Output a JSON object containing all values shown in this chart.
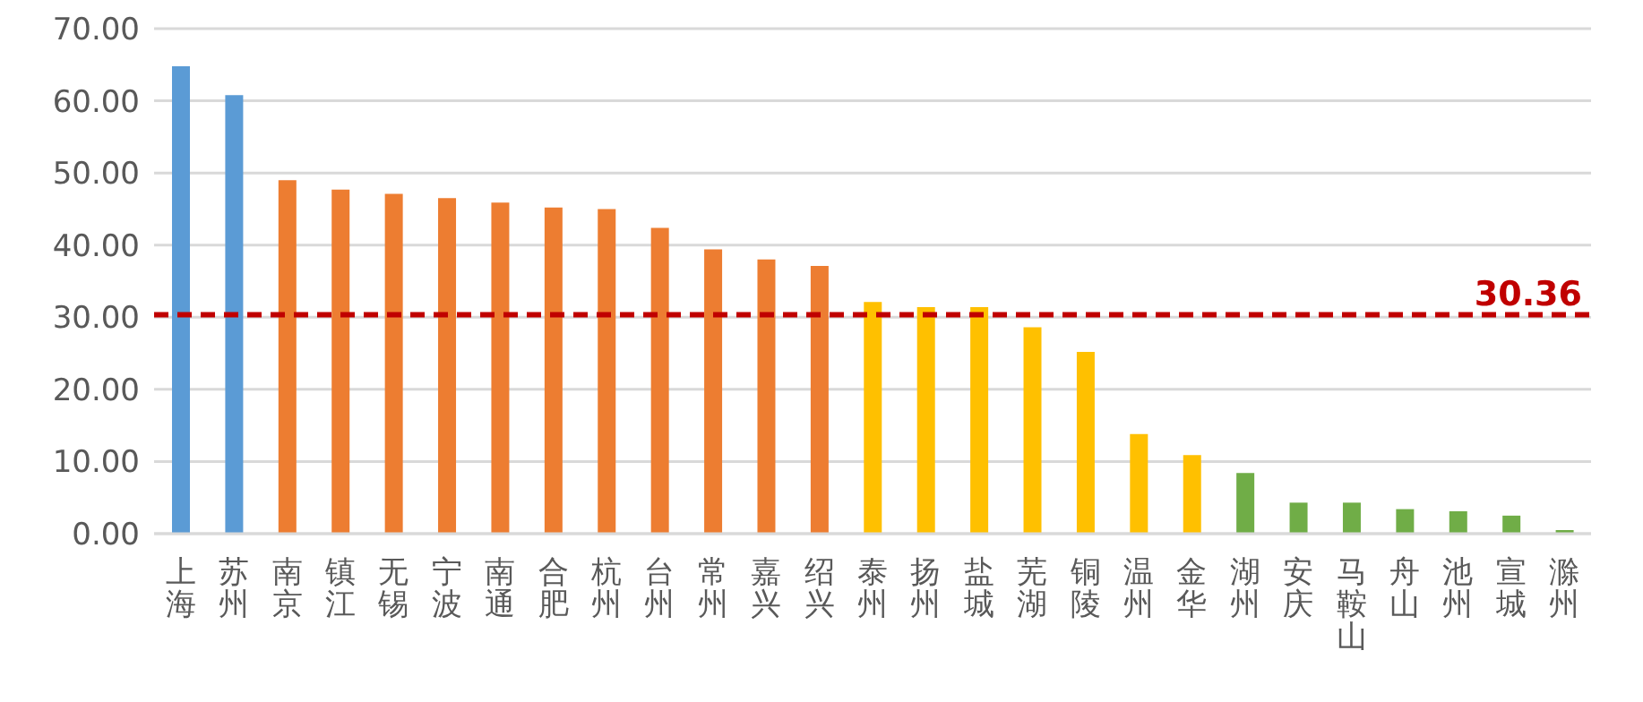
{
  "chart_data": {
    "type": "bar",
    "categories": [
      "上海",
      "苏州",
      "南京",
      "镇江",
      "无锡",
      "宁波",
      "南通",
      "合肥",
      "杭州",
      "台州",
      "常州",
      "嘉兴",
      "绍兴",
      "泰州",
      "扬州",
      "盐城",
      "芜湖",
      "铜陵",
      "温州",
      "金华",
      "湖州",
      "安庆",
      "马鞍山",
      "舟山",
      "池州",
      "宣城",
      "滁州"
    ],
    "values": [
      64.8,
      60.8,
      49.0,
      47.7,
      47.1,
      46.5,
      45.9,
      45.2,
      45.0,
      42.4,
      39.4,
      38.0,
      37.1,
      32.1,
      31.4,
      31.4,
      28.6,
      25.2,
      13.8,
      10.9,
      8.4,
      4.3,
      4.3,
      3.4,
      3.1,
      2.5,
      0.5
    ],
    "colors": [
      "#5b9bd5",
      "#5b9bd5",
      "#ed7d31",
      "#ed7d31",
      "#ed7d31",
      "#ed7d31",
      "#ed7d31",
      "#ed7d31",
      "#ed7d31",
      "#ed7d31",
      "#ed7d31",
      "#ed7d31",
      "#ed7d31",
      "#ffc000",
      "#ffc000",
      "#ffc000",
      "#ffc000",
      "#ffc000",
      "#ffc000",
      "#ffc000",
      "#70ad47",
      "#70ad47",
      "#70ad47",
      "#70ad47",
      "#70ad47",
      "#70ad47",
      "#70ad47"
    ],
    "ylim": [
      0,
      70
    ],
    "yticks": [
      {
        "value": 0,
        "label": "0.00"
      },
      {
        "value": 10,
        "label": "10.00"
      },
      {
        "value": 20,
        "label": "20.00"
      },
      {
        "value": 30,
        "label": "30.00"
      },
      {
        "value": 40,
        "label": "40.00"
      },
      {
        "value": 50,
        "label": "50.00"
      },
      {
        "value": 60,
        "label": "60.00"
      },
      {
        "value": 70,
        "label": "70.00"
      }
    ],
    "grid": "y",
    "ref_lines": [
      {
        "axis": "y",
        "value": 30.36,
        "label": "30.36",
        "color": "#c00000",
        "line_style": "dashed"
      }
    ]
  }
}
